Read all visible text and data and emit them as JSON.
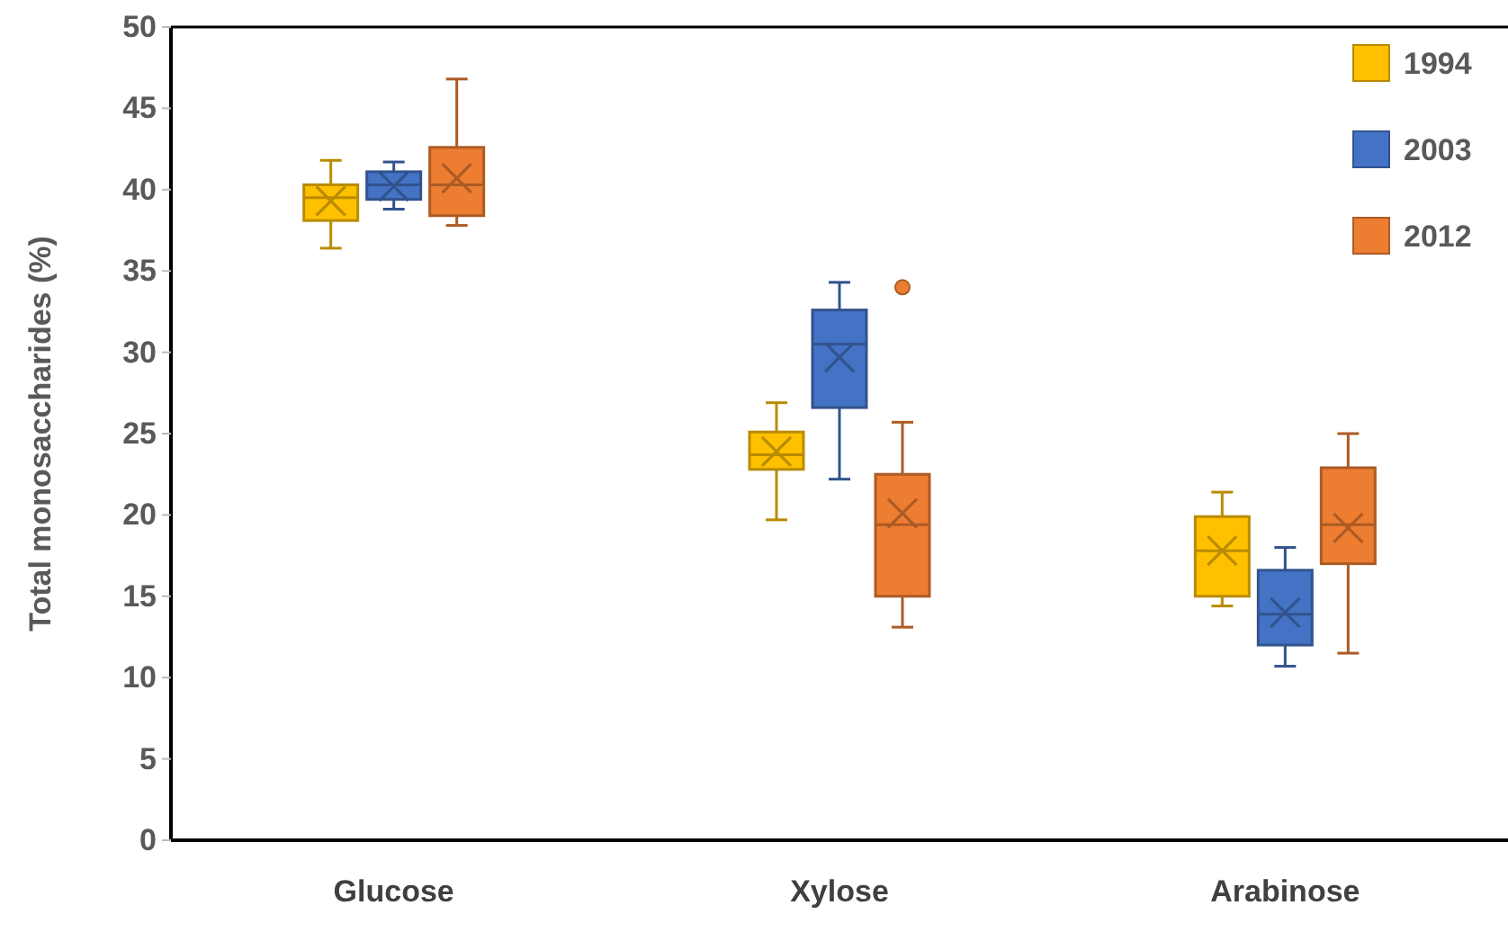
{
  "chart_data": {
    "type": "box",
    "ylabel": "Total monosaccharides (%)",
    "categories": [
      "Glucose",
      "Xylose",
      "Arabinose"
    ],
    "ylim": [
      0,
      50
    ],
    "yticks": [
      0,
      5,
      10,
      15,
      20,
      25,
      30,
      35,
      40,
      45,
      50
    ],
    "grid": false,
    "legend": "top right",
    "marker": "cross",
    "series": [
      {
        "name": "1994",
        "color": "#ffc000",
        "boxes": [
          {
            "low": 36.4,
            "q1": 38.1,
            "median": 39.5,
            "q3": 40.3,
            "high": 41.8,
            "mean": 39.3
          },
          {
            "low": 19.7,
            "q1": 22.8,
            "median": 23.7,
            "q3": 25.1,
            "high": 26.9,
            "mean": 23.9
          },
          {
            "low": 14.4,
            "q1": 15.0,
            "median": 17.8,
            "q3": 19.9,
            "high": 21.4,
            "mean": 17.8
          }
        ]
      },
      {
        "name": "2003",
        "color": "#4472c4",
        "boxes": [
          {
            "low": 38.8,
            "q1": 39.4,
            "median": 40.3,
            "q3": 41.1,
            "high": 41.7,
            "mean": 40.2
          },
          {
            "low": 22.2,
            "q1": 26.6,
            "median": 30.5,
            "q3": 32.6,
            "high": 34.3,
            "mean": 29.7
          },
          {
            "low": 10.7,
            "q1": 12.0,
            "median": 13.9,
            "q3": 16.6,
            "high": 18.0,
            "mean": 14.0
          }
        ]
      },
      {
        "name": "2012",
        "color": "#ed7d31",
        "boxes": [
          {
            "low": 37.8,
            "q1": 38.4,
            "median": 40.3,
            "q3": 42.6,
            "high": 46.8,
            "mean": 40.7
          },
          {
            "low": 13.1,
            "q1": 15.0,
            "median": 19.4,
            "q3": 22.5,
            "high": 25.7,
            "mean": 20.1,
            "outliers": [
              34.0
            ]
          },
          {
            "low": 11.5,
            "q1": 17.0,
            "median": 19.4,
            "q3": 22.9,
            "high": 25.0,
            "mean": 19.2
          }
        ]
      }
    ]
  }
}
